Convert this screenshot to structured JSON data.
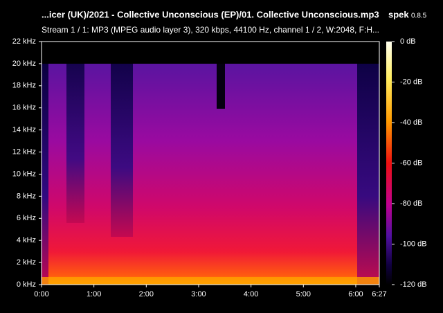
{
  "chart_data": {
    "type": "spectrogram",
    "title": "...icer (UK)/2021 - Collective Unconscious (EP)/01. Collective Unconscious.mp3",
    "app_name": "spek",
    "app_version": "0.8.5",
    "subtitle": "Stream 1 / 1: MP3 (MPEG audio layer 3), 320 kbps, 44100 Hz, channel 1 / 2, W:2048, F:H...",
    "xlim": [
      0,
      387
    ],
    "xticks": [
      {
        "value": 0,
        "label": "0:00"
      },
      {
        "value": 60,
        "label": "1:00"
      },
      {
        "value": 120,
        "label": "2:00"
      },
      {
        "value": 180,
        "label": "3:00"
      },
      {
        "value": 240,
        "label": "4:00"
      },
      {
        "value": 300,
        "label": "5:00"
      },
      {
        "value": 360,
        "label": "6:00"
      },
      {
        "value": 387,
        "label": "6:27"
      }
    ],
    "ylim": [
      0,
      22
    ],
    "yticks": [
      {
        "value": 0,
        "label": "0 kHz"
      },
      {
        "value": 2,
        "label": "2 kHz"
      },
      {
        "value": 4,
        "label": "4 kHz"
      },
      {
        "value": 6,
        "label": "6 kHz"
      },
      {
        "value": 8,
        "label": "8 kHz"
      },
      {
        "value": 10,
        "label": "10 kHz"
      },
      {
        "value": 12,
        "label": "12 kHz"
      },
      {
        "value": 14,
        "label": "14 kHz"
      },
      {
        "value": 16,
        "label": "16 kHz"
      },
      {
        "value": 18,
        "label": "18 kHz"
      },
      {
        "value": 20,
        "label": "20 kHz"
      },
      {
        "value": 22,
        "label": "22 kHz"
      }
    ],
    "clim": [
      -120,
      0
    ],
    "cticks": [
      {
        "value": 0,
        "label": "0 dB"
      },
      {
        "value": -20,
        "label": "-20 dB"
      },
      {
        "value": -40,
        "label": "-40 dB"
      },
      {
        "value": -60,
        "label": "-60 dB"
      },
      {
        "value": -80,
        "label": "-80 dB"
      },
      {
        "value": -100,
        "label": "-100 dB"
      },
      {
        "value": -120,
        "label": "-120 dB"
      }
    ]
  }
}
